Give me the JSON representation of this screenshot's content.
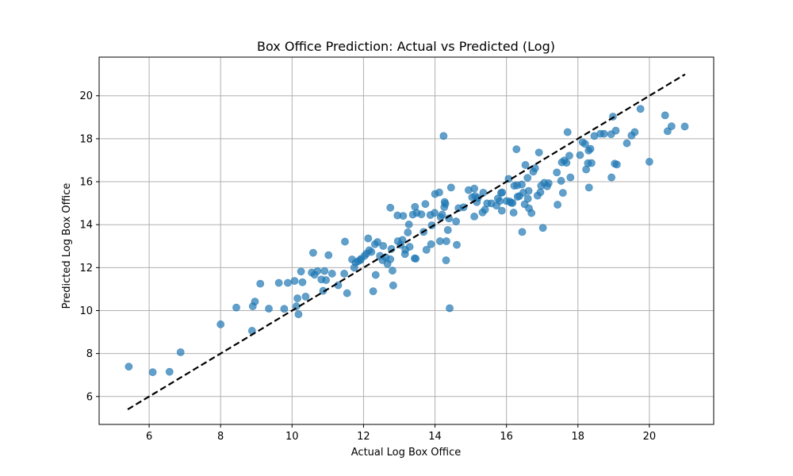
{
  "chart_data": {
    "type": "scatter",
    "title": "Box Office Prediction: Actual vs Predicted (Log)",
    "xlabel": "Actual Log Box Office",
    "ylabel": "Predicted Log Box Office",
    "xlim": [
      4.6,
      21.8
    ],
    "ylim": [
      4.7,
      21.8
    ],
    "xticks": [
      6,
      8,
      10,
      12,
      14,
      16,
      18,
      20
    ],
    "yticks": [
      6,
      8,
      10,
      12,
      14,
      16,
      18,
      20
    ],
    "grid": true,
    "point_color": "#1f77b4",
    "reference_line": {
      "from": [
        5.4,
        5.4
      ],
      "to": [
        21,
        21
      ],
      "color": "#000000",
      "style": "dashed"
    },
    "points": [
      [
        5.43,
        7.39
      ],
      [
        6.1,
        7.13
      ],
      [
        6.57,
        7.15
      ],
      [
        6.88,
        8.06
      ],
      [
        8.0,
        9.36
      ],
      [
        8.44,
        10.14
      ],
      [
        8.88,
        9.06
      ],
      [
        8.9,
        10.2
      ],
      [
        8.96,
        10.42
      ],
      [
        9.11,
        11.25
      ],
      [
        9.35,
        10.09
      ],
      [
        9.63,
        11.29
      ],
      [
        9.78,
        10.08
      ],
      [
        9.88,
        11.29
      ],
      [
        10.07,
        11.38
      ],
      [
        10.12,
        10.2
      ],
      [
        10.15,
        10.57
      ],
      [
        10.18,
        9.83
      ],
      [
        10.25,
        11.82
      ],
      [
        10.29,
        11.32
      ],
      [
        10.38,
        10.65
      ],
      [
        10.55,
        11.77
      ],
      [
        10.59,
        12.69
      ],
      [
        10.63,
        11.67
      ],
      [
        10.71,
        11.84
      ],
      [
        10.82,
        11.45
      ],
      [
        10.87,
        10.92
      ],
      [
        10.91,
        11.84
      ],
      [
        10.95,
        11.42
      ],
      [
        11.02,
        12.58
      ],
      [
        11.12,
        11.72
      ],
      [
        11.29,
        11.18
      ],
      [
        11.46,
        11.72
      ],
      [
        11.48,
        13.21
      ],
      [
        11.54,
        10.81
      ],
      [
        11.68,
        12.38
      ],
      [
        11.74,
        12.0
      ],
      [
        11.78,
        12.23
      ],
      [
        11.85,
        12.3
      ],
      [
        11.91,
        12.35
      ],
      [
        11.93,
        12.41
      ],
      [
        12.03,
        12.55
      ],
      [
        12.08,
        12.65
      ],
      [
        12.13,
        13.36
      ],
      [
        12.16,
        12.81
      ],
      [
        12.22,
        12.73
      ],
      [
        12.27,
        10.9
      ],
      [
        12.32,
        13.09
      ],
      [
        12.34,
        11.66
      ],
      [
        12.39,
        13.19
      ],
      [
        12.46,
        12.55
      ],
      [
        12.53,
        12.35
      ],
      [
        12.55,
        13.01
      ],
      [
        12.62,
        12.48
      ],
      [
        12.67,
        12.17
      ],
      [
        12.75,
        14.79
      ],
      [
        12.75,
        12.39
      ],
      [
        12.78,
        12.87
      ],
      [
        12.81,
        11.86
      ],
      [
        12.83,
        11.17
      ],
      [
        12.95,
        14.43
      ],
      [
        12.96,
        13.23
      ],
      [
        13.04,
        13.06
      ],
      [
        13.09,
        13.29
      ],
      [
        13.11,
        14.41
      ],
      [
        13.16,
        12.63
      ],
      [
        13.17,
        12.83
      ],
      [
        13.24,
        13.64
      ],
      [
        13.27,
        14.01
      ],
      [
        13.29,
        12.97
      ],
      [
        13.38,
        14.47
      ],
      [
        13.43,
        12.43
      ],
      [
        13.44,
        14.83
      ],
      [
        13.46,
        12.42
      ],
      [
        13.49,
        14.55
      ],
      [
        13.62,
        14.48
      ],
      [
        13.68,
        13.66
      ],
      [
        13.73,
        14.96
      ],
      [
        13.76,
        12.83
      ],
      [
        13.87,
        14.45
      ],
      [
        13.89,
        13.09
      ],
      [
        13.91,
        13.97
      ],
      [
        13.99,
        14.55
      ],
      [
        14.0,
        15.43
      ],
      [
        14.12,
        15.5
      ],
      [
        14.14,
        13.23
      ],
      [
        14.16,
        14.35
      ],
      [
        14.2,
        14.47
      ],
      [
        14.24,
        18.13
      ],
      [
        14.26,
        14.82
      ],
      [
        14.27,
        15.06
      ],
      [
        14.29,
        14.97
      ],
      [
        14.31,
        12.34
      ],
      [
        14.32,
        13.23
      ],
      [
        14.36,
        13.75
      ],
      [
        14.39,
        14.29
      ],
      [
        14.41,
        10.11
      ],
      [
        14.45,
        15.73
      ],
      [
        14.59,
        14.15
      ],
      [
        14.61,
        13.06
      ],
      [
        14.66,
        14.77
      ],
      [
        14.8,
        14.81
      ],
      [
        14.94,
        15.61
      ],
      [
        15.04,
        15.27
      ],
      [
        15.1,
        14.38
      ],
      [
        15.1,
        15.68
      ],
      [
        15.12,
        15.33
      ],
      [
        15.17,
        15.05
      ],
      [
        15.2,
        15.25
      ],
      [
        15.33,
        14.57
      ],
      [
        15.35,
        15.49
      ],
      [
        15.4,
        14.7
      ],
      [
        15.46,
        14.99
      ],
      [
        15.58,
        14.99
      ],
      [
        15.72,
        14.89
      ],
      [
        15.76,
        15.22
      ],
      [
        15.81,
        15.1
      ],
      [
        15.85,
        15.48
      ],
      [
        15.87,
        14.65
      ],
      [
        15.88,
        15.5
      ],
      [
        16.0,
        15.1
      ],
      [
        16.06,
        16.13
      ],
      [
        16.09,
        15.08
      ],
      [
        16.13,
        15.02
      ],
      [
        16.17,
        15.01
      ],
      [
        16.2,
        14.56
      ],
      [
        16.22,
        15.81
      ],
      [
        16.28,
        17.51
      ],
      [
        16.3,
        15.83
      ],
      [
        16.31,
        15.3
      ],
      [
        16.36,
        15.33
      ],
      [
        16.43,
        15.87
      ],
      [
        16.44,
        13.66
      ],
      [
        16.47,
        15.49
      ],
      [
        16.51,
        14.95
      ],
      [
        16.53,
        16.78
      ],
      [
        16.59,
        16.18
      ],
      [
        16.6,
        15.21
      ],
      [
        16.62,
        15.57
      ],
      [
        16.63,
        14.76
      ],
      [
        16.7,
        14.54
      ],
      [
        16.75,
        16.47
      ],
      [
        16.8,
        16.63
      ],
      [
        16.87,
        15.35
      ],
      [
        16.91,
        17.36
      ],
      [
        16.95,
        15.51
      ],
      [
        16.97,
        15.81
      ],
      [
        17.02,
        13.85
      ],
      [
        17.06,
        15.95
      ],
      [
        17.14,
        15.79
      ],
      [
        17.18,
        15.93
      ],
      [
        17.41,
        16.43
      ],
      [
        17.43,
        14.93
      ],
      [
        17.53,
        16.04
      ],
      [
        17.55,
        16.9
      ],
      [
        17.58,
        15.48
      ],
      [
        17.62,
        16.99
      ],
      [
        17.68,
        16.88
      ],
      [
        17.71,
        18.31
      ],
      [
        17.76,
        17.21
      ],
      [
        17.79,
        16.2
      ],
      [
        18.06,
        17.24
      ],
      [
        18.13,
        17.84
      ],
      [
        18.2,
        17.76
      ],
      [
        18.23,
        16.57
      ],
      [
        18.28,
        16.86
      ],
      [
        18.3,
        17.45
      ],
      [
        18.31,
        15.73
      ],
      [
        18.35,
        17.53
      ],
      [
        18.38,
        16.87
      ],
      [
        18.46,
        18.13
      ],
      [
        18.63,
        18.23
      ],
      [
        18.73,
        18.23
      ],
      [
        18.93,
        18.21
      ],
      [
        18.94,
        16.2
      ],
      [
        18.98,
        19.03
      ],
      [
        19.03,
        16.84
      ],
      [
        19.06,
        18.38
      ],
      [
        19.09,
        16.8
      ],
      [
        19.37,
        17.79
      ],
      [
        19.5,
        18.15
      ],
      [
        19.59,
        18.31
      ],
      [
        19.75,
        19.39
      ],
      [
        20.0,
        16.93
      ],
      [
        20.44,
        19.09
      ],
      [
        20.51,
        18.35
      ],
      [
        20.62,
        18.58
      ],
      [
        20.99,
        18.57
      ]
    ]
  }
}
